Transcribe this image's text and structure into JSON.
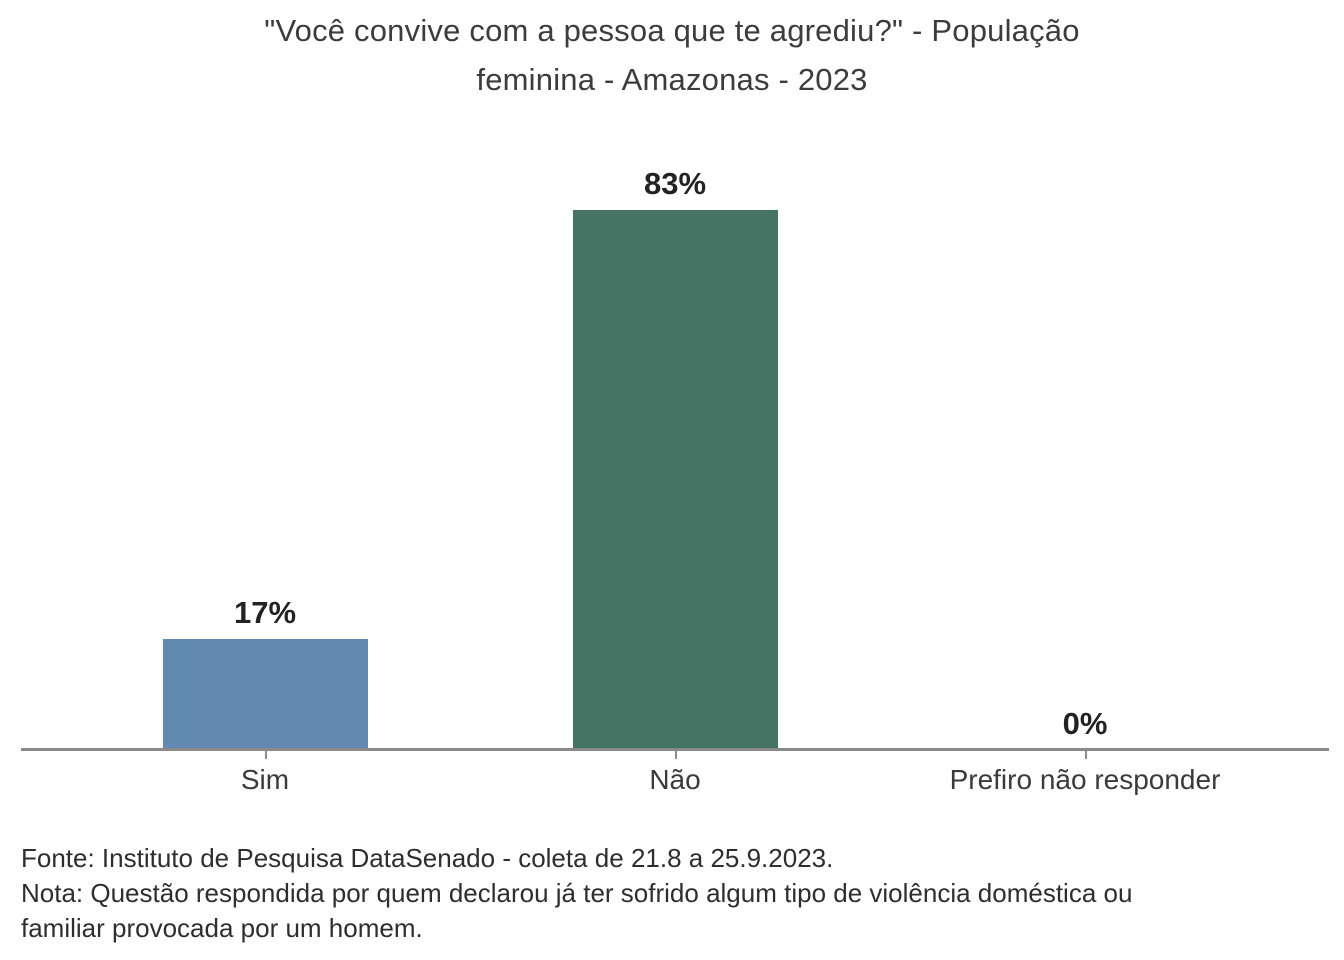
{
  "title_lines": [
    "\"Você convive com a pessoa que te agrediu?\" - População",
    "feminina - Amazonas - 2023"
  ],
  "chart_data": {
    "type": "bar",
    "title": "\"Você convive com a pessoa que te agrediu?\" - População feminina - Amazonas - 2023",
    "categories": [
      "Sim",
      "Não",
      "Prefiro não responder"
    ],
    "values": [
      17,
      83,
      0
    ],
    "xlabel": "",
    "ylabel": "",
    "ylim": [
      0,
      100
    ],
    "grid": false,
    "legend": "none",
    "value_label_format": "percent",
    "bars": [
      {
        "category": "Sim",
        "value": 17,
        "label": "17%",
        "color": "#6289b1"
      },
      {
        "category": "Não",
        "value": 83,
        "label": "83%",
        "color": "#467464"
      },
      {
        "category": "Prefiro não responder",
        "value": 0,
        "label": "0%",
        "color": null
      }
    ],
    "axis_color": "#8a8a8a"
  },
  "footer": {
    "fonte": "Fonte: Instituto de Pesquisa DataSenado - coleta de 21.8 a 25.9.2023.",
    "nota": "Nota: Questão respondida por quem declarou já ter sofrido algum tipo de violência doméstica ou familiar provocada por um homem."
  }
}
